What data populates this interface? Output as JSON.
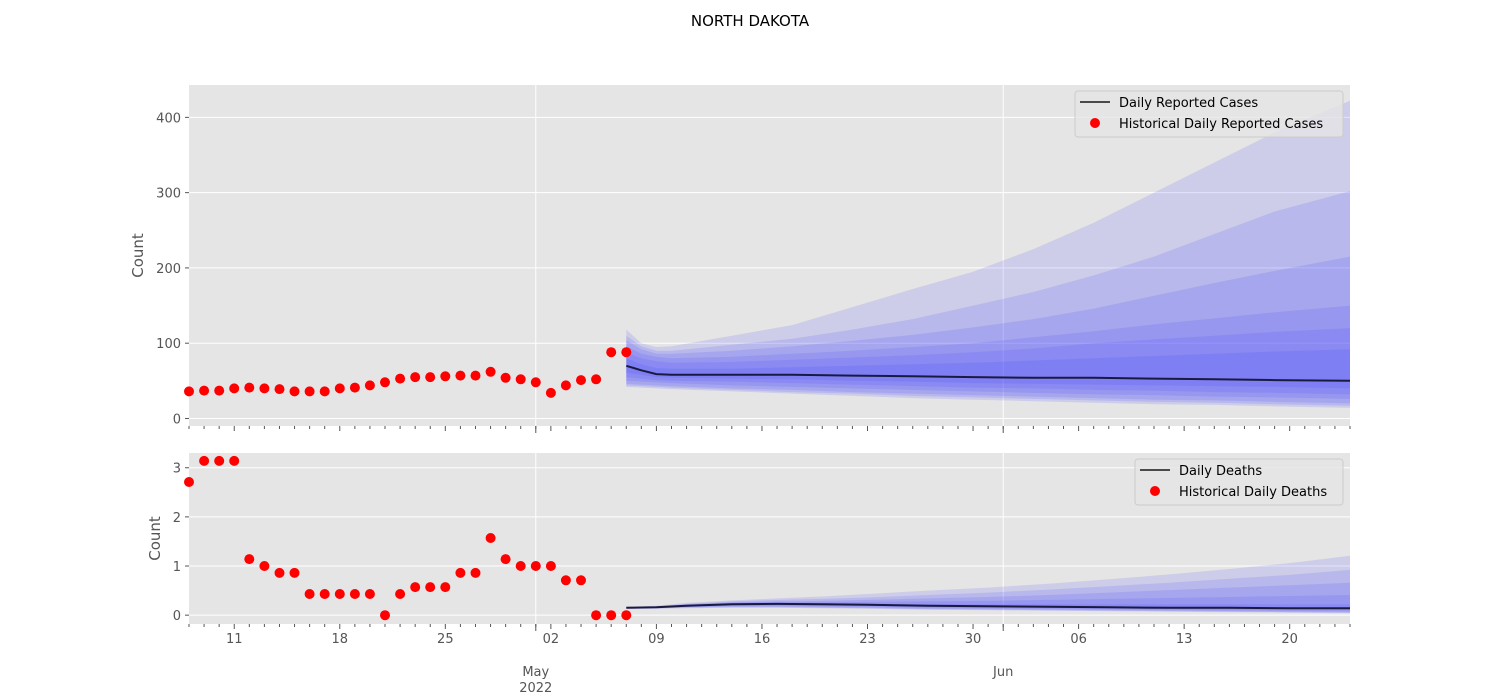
{
  "figure": {
    "title": "NORTH DAKOTA"
  },
  "colors": {
    "panel_bg": "#e5e5e5",
    "grid": "#ffffff",
    "historical": "#ff0000",
    "median": "#1a1a40",
    "band": "#4040ff",
    "tick_text": "#555555",
    "label_text": "#555555"
  },
  "x_axis": {
    "start": "2022-04-08",
    "end": "2022-06-24",
    "major_ticks": [
      {
        "date": "2022-04-11",
        "label": "11"
      },
      {
        "date": "2022-04-18",
        "label": "18"
      },
      {
        "date": "2022-04-25",
        "label": "25"
      },
      {
        "date": "2022-05-02",
        "label": "02"
      },
      {
        "date": "2022-05-09",
        "label": "09"
      },
      {
        "date": "2022-05-16",
        "label": "16"
      },
      {
        "date": "2022-05-23",
        "label": "23"
      },
      {
        "date": "2022-05-30",
        "label": "30"
      },
      {
        "date": "2022-06-06",
        "label": "06"
      },
      {
        "date": "2022-06-13",
        "label": "13"
      },
      {
        "date": "2022-06-20",
        "label": "20"
      }
    ],
    "month_ticks": [
      {
        "date": "2022-05-01",
        "label": "May",
        "sublabel": "2022"
      },
      {
        "date": "2022-06-01",
        "label": "Jun",
        "sublabel": ""
      }
    ]
  },
  "chart_data": [
    {
      "type": "line",
      "panel": "cases",
      "ylabel": "Count",
      "ylim": [
        -10,
        443
      ],
      "yticks": [
        0,
        100,
        200,
        300,
        400
      ],
      "grid": true,
      "legend_position": "top-right",
      "legend": [
        "Daily Reported Cases",
        "Historical Daily Reported Cases"
      ],
      "historical": {
        "name": "Historical Daily Reported Cases",
        "dates": [
          "2022-04-08",
          "2022-04-09",
          "2022-04-10",
          "2022-04-11",
          "2022-04-12",
          "2022-04-13",
          "2022-04-14",
          "2022-04-15",
          "2022-04-16",
          "2022-04-17",
          "2022-04-18",
          "2022-04-19",
          "2022-04-20",
          "2022-04-21",
          "2022-04-22",
          "2022-04-23",
          "2022-04-24",
          "2022-04-25",
          "2022-04-26",
          "2022-04-27",
          "2022-04-28",
          "2022-04-29",
          "2022-04-30",
          "2022-05-01",
          "2022-05-02",
          "2022-05-03",
          "2022-05-04",
          "2022-05-05",
          "2022-05-06",
          "2022-05-07"
        ],
        "values": [
          36,
          37,
          37,
          40,
          41,
          40,
          39,
          36,
          36,
          36,
          40,
          41,
          44,
          48,
          53,
          55,
          55,
          56,
          57,
          57,
          62,
          54,
          52,
          48,
          34,
          44,
          51,
          52,
          88,
          88
        ]
      },
      "forecast": {
        "name": "Daily Reported Cases",
        "dates": [
          "2022-05-07",
          "2022-05-08",
          "2022-05-09",
          "2022-05-10",
          "2022-05-14",
          "2022-05-18",
          "2022-05-22",
          "2022-05-26",
          "2022-05-30",
          "2022-06-03",
          "2022-06-07",
          "2022-06-11",
          "2022-06-15",
          "2022-06-19",
          "2022-06-24"
        ],
        "median": [
          70,
          64,
          59,
          58,
          58,
          58,
          57,
          56,
          55,
          54,
          54,
          53,
          52,
          51,
          50
        ],
        "quantiles": [
          {
            "level": 98,
            "lower": [
              42,
              41,
              40,
              39,
              36,
              33,
              30,
              27,
              25,
              23,
              21,
              19,
              18,
              16,
              14
            ],
            "upper": [
              118,
              100,
              95,
              96,
              110,
              124,
              148,
              172,
              195,
              225,
              260,
              300,
              340,
              380,
              422
            ]
          },
          {
            "level": 90,
            "lower": [
              44,
              43,
              42,
              41,
              38,
              35,
              33,
              30,
              28,
              26,
              24,
              22,
              21,
              19,
              17
            ],
            "upper": [
              110,
              96,
              90,
              90,
              98,
              106,
              118,
              132,
              150,
              168,
              190,
              215,
              245,
              275,
              302
            ]
          },
          {
            "level": 80,
            "lower": [
              46,
              45,
              44,
              43,
              40,
              38,
              35,
              33,
              31,
              29,
              27,
              25,
              24,
              22,
              20
            ],
            "upper": [
              104,
              92,
              86,
              86,
              90,
              96,
              103,
              111,
              121,
              132,
              146,
              163,
              180,
              196,
              215
            ]
          },
          {
            "level": 60,
            "lower": [
              50,
              49,
              48,
              47,
              44,
              42,
              40,
              38,
              36,
              34,
              32,
              31,
              29,
              28,
              26
            ],
            "upper": [
              96,
              86,
              82,
              80,
              82,
              86,
              90,
              95,
              100,
              108,
              116,
              125,
              133,
              141,
              150
            ]
          },
          {
            "level": 40,
            "lower": [
              55,
              53,
              51,
              50,
              49,
              47,
              45,
              43,
              41,
              40,
              38,
              37,
              35,
              34,
              32
            ],
            "upper": [
              88,
              80,
              76,
              74,
              75,
              78,
              81,
              84,
              88,
              93,
              100,
              105,
              110,
              115,
              120
            ]
          },
          {
            "level": 20,
            "lower": [
              61,
              58,
              55,
              54,
              53,
              52,
              50,
              49,
              47,
              46,
              45,
              44,
              43,
              42,
              40
            ],
            "upper": [
              80,
              72,
              67,
              66,
              66,
              68,
              70,
              72,
              74,
              77,
              80,
              83,
              86,
              89,
              92
            ]
          }
        ]
      }
    },
    {
      "type": "line",
      "panel": "deaths",
      "ylabel": "Count",
      "ylim": [
        -0.18,
        3.3
      ],
      "yticks": [
        0,
        1,
        2,
        3
      ],
      "grid": true,
      "legend_position": "top-right",
      "legend": [
        "Daily Deaths",
        "Historical Daily Deaths"
      ],
      "historical": {
        "name": "Historical Daily Deaths",
        "dates": [
          "2022-04-08",
          "2022-04-09",
          "2022-04-10",
          "2022-04-11",
          "2022-04-12",
          "2022-04-13",
          "2022-04-14",
          "2022-04-15",
          "2022-04-16",
          "2022-04-17",
          "2022-04-18",
          "2022-04-19",
          "2022-04-20",
          "2022-04-21",
          "2022-04-22",
          "2022-04-23",
          "2022-04-24",
          "2022-04-25",
          "2022-04-26",
          "2022-04-27",
          "2022-04-28",
          "2022-04-29",
          "2022-04-30",
          "2022-05-01",
          "2022-05-02",
          "2022-05-03",
          "2022-05-04",
          "2022-05-05",
          "2022-05-06",
          "2022-05-07"
        ],
        "values": [
          2.71,
          3.14,
          3.14,
          3.14,
          1.14,
          1.0,
          0.86,
          0.86,
          0.43,
          0.43,
          0.43,
          0.43,
          0.43,
          0.0,
          0.43,
          0.57,
          0.57,
          0.57,
          0.86,
          0.86,
          1.57,
          1.14,
          1.0,
          1.0,
          1.0,
          0.71,
          0.71,
          0.0,
          0.0,
          0.0
        ]
      },
      "forecast": {
        "name": "Daily Deaths",
        "dates": [
          "2022-05-07",
          "2022-05-09",
          "2022-05-11",
          "2022-05-14",
          "2022-05-17",
          "2022-05-20",
          "2022-05-23",
          "2022-05-27",
          "2022-05-31",
          "2022-06-04",
          "2022-06-08",
          "2022-06-12",
          "2022-06-16",
          "2022-06-20",
          "2022-06-24"
        ],
        "median": [
          0.15,
          0.16,
          0.19,
          0.22,
          0.23,
          0.22,
          0.21,
          0.19,
          0.18,
          0.17,
          0.16,
          0.15,
          0.15,
          0.14,
          0.14
        ],
        "quantiles": [
          {
            "level": 98,
            "lower": [
              0.13,
              0.13,
              0.14,
              0.15,
              0.15,
              0.14,
              0.13,
              0.11,
              0.1,
              0.09,
              0.08,
              0.07,
              0.06,
              0.05,
              0.04
            ],
            "upper": [
              0.17,
              0.19,
              0.25,
              0.3,
              0.34,
              0.38,
              0.43,
              0.5,
              0.56,
              0.64,
              0.73,
              0.83,
              0.94,
              1.06,
              1.21
            ]
          },
          {
            "level": 90,
            "lower": [
              0.13,
              0.14,
              0.15,
              0.16,
              0.16,
              0.15,
              0.14,
              0.12,
              0.11,
              0.1,
              0.09,
              0.08,
              0.07,
              0.06,
              0.05
            ],
            "upper": [
              0.17,
              0.18,
              0.23,
              0.28,
              0.31,
              0.33,
              0.36,
              0.41,
              0.46,
              0.52,
              0.59,
              0.66,
              0.74,
              0.82,
              0.92
            ]
          },
          {
            "level": 80,
            "lower": [
              0.14,
              0.14,
              0.16,
              0.17,
              0.17,
              0.16,
              0.15,
              0.13,
              0.12,
              0.11,
              0.1,
              0.09,
              0.08,
              0.07,
              0.06
            ],
            "upper": [
              0.16,
              0.18,
              0.22,
              0.26,
              0.28,
              0.29,
              0.31,
              0.34,
              0.37,
              0.41,
              0.46,
              0.51,
              0.56,
              0.61,
              0.66
            ]
          },
          {
            "level": 60,
            "lower": [
              0.14,
              0.15,
              0.17,
              0.19,
              0.19,
              0.18,
              0.17,
              0.15,
              0.14,
              0.13,
              0.12,
              0.11,
              0.1,
              0.09,
              0.09
            ],
            "upper": [
              0.16,
              0.17,
              0.21,
              0.25,
              0.26,
              0.26,
              0.27,
              0.28,
              0.29,
              0.31,
              0.33,
              0.35,
              0.37,
              0.39,
              0.41
            ]
          },
          {
            "level": 40,
            "lower": [
              0.15,
              0.15,
              0.18,
              0.2,
              0.21,
              0.2,
              0.19,
              0.17,
              0.16,
              0.15,
              0.14,
              0.13,
              0.12,
              0.12,
              0.11
            ],
            "upper": [
              0.16,
              0.17,
              0.2,
              0.24,
              0.25,
              0.24,
              0.23,
              0.22,
              0.22,
              0.22,
              0.22,
              0.22,
              0.22,
              0.22,
              0.22
            ]
          }
        ]
      }
    }
  ]
}
